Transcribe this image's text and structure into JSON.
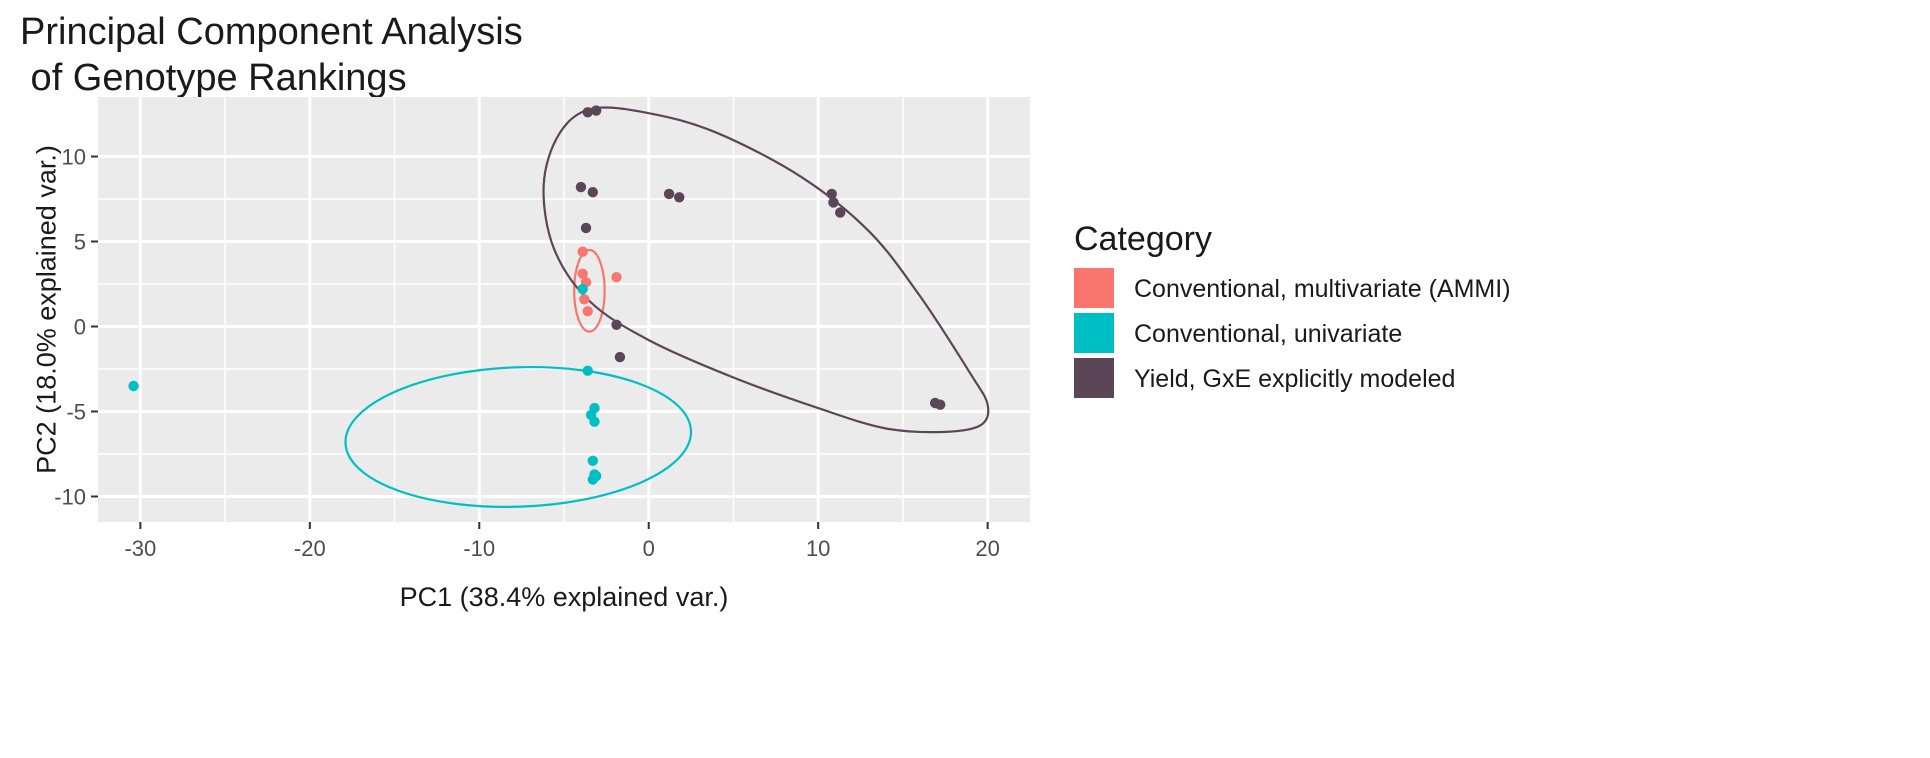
{
  "chart_data": {
    "type": "scatter",
    "title_lines": [
      "Principal Component Analysis",
      " of Genotype Rankings"
    ],
    "xlabel": "PC1 (38.4% explained var.)",
    "ylabel": "PC2 (18.0% explained var.)",
    "xlim": [
      -32.5,
      22.5
    ],
    "ylim": [
      -11.5,
      13.5
    ],
    "x_ticks": [
      -30,
      -20,
      -10,
      0,
      10,
      20
    ],
    "y_ticks": [
      -10,
      -5,
      0,
      5,
      10
    ],
    "x_tick_labels": [
      "-30",
      "-20",
      "-10",
      "0",
      "10",
      "20"
    ],
    "y_tick_labels": [
      "-10",
      "-5",
      "0",
      "5",
      "10"
    ],
    "grid": true,
    "panel_background": "#ebebeb",
    "legend": {
      "title": "Category",
      "position": "right"
    },
    "series": [
      {
        "name": "Conventional, multivariate (AMMI)",
        "color": "#f8766d",
        "points": [
          {
            "x": -3.9,
            "y": 4.4
          },
          {
            "x": -3.9,
            "y": 3.1
          },
          {
            "x": -3.7,
            "y": 2.6
          },
          {
            "x": -3.8,
            "y": 1.6
          },
          {
            "x": -3.6,
            "y": 0.9
          },
          {
            "x": -1.9,
            "y": 2.9
          }
        ],
        "ellipse": {
          "cx": -3.5,
          "cy": 2.1,
          "rx": 0.9,
          "ry": 2.4,
          "angle": 0
        }
      },
      {
        "name": "Conventional, univariate",
        "color": "#00bfc4",
        "points": [
          {
            "x": -30.4,
            "y": -3.5
          },
          {
            "x": -3.9,
            "y": 2.2
          },
          {
            "x": -3.6,
            "y": -2.6
          },
          {
            "x": -3.2,
            "y": -4.8
          },
          {
            "x": -3.4,
            "y": -5.2
          },
          {
            "x": -3.2,
            "y": -5.6
          },
          {
            "x": -3.3,
            "y": -7.9
          },
          {
            "x": -3.2,
            "y": -8.7
          },
          {
            "x": -3.3,
            "y": -9.0
          },
          {
            "x": -3.1,
            "y": -8.8
          }
        ],
        "ellipse": {
          "cx": -7.7,
          "cy": -6.5,
          "rx": 10.2,
          "ry": 4.1,
          "angle": -2
        }
      },
      {
        "name": "Yield, GxE explicitly modeled",
        "color": "#5b4657",
        "points": [
          {
            "x": -3.6,
            "y": 12.6
          },
          {
            "x": -3.1,
            "y": 12.7
          },
          {
            "x": -4.0,
            "y": 8.2
          },
          {
            "x": -3.3,
            "y": 7.9
          },
          {
            "x": 1.2,
            "y": 7.8
          },
          {
            "x": 1.8,
            "y": 7.6
          },
          {
            "x": -3.7,
            "y": 5.8
          },
          {
            "x": -1.9,
            "y": 0.1
          },
          {
            "x": -1.7,
            "y": -1.8
          },
          {
            "x": 10.8,
            "y": 7.8
          },
          {
            "x": 10.9,
            "y": 7.3
          },
          {
            "x": 11.3,
            "y": 6.7
          },
          {
            "x": 16.9,
            "y": -4.5
          },
          {
            "x": 17.2,
            "y": -4.6
          }
        ],
        "ellipse_path": [
          [
            -3.4,
            12.8
          ],
          [
            0.0,
            12.55
          ],
          [
            4.0,
            11.4
          ],
          [
            9.0,
            8.8
          ],
          [
            13.0,
            5.6
          ],
          [
            16.0,
            1.8
          ],
          [
            19.0,
            -2.8
          ],
          [
            20.0,
            -4.6
          ],
          [
            19.6,
            -5.8
          ],
          [
            17.5,
            -6.2
          ],
          [
            14.0,
            -6.0
          ],
          [
            10.0,
            -4.8
          ],
          [
            5.0,
            -3.0
          ],
          [
            0.0,
            -0.8
          ],
          [
            -3.5,
            1.5
          ],
          [
            -5.6,
            4.6
          ],
          [
            -6.2,
            8.3
          ],
          [
            -5.3,
            11.3
          ],
          [
            -3.4,
            12.8
          ]
        ]
      }
    ]
  }
}
